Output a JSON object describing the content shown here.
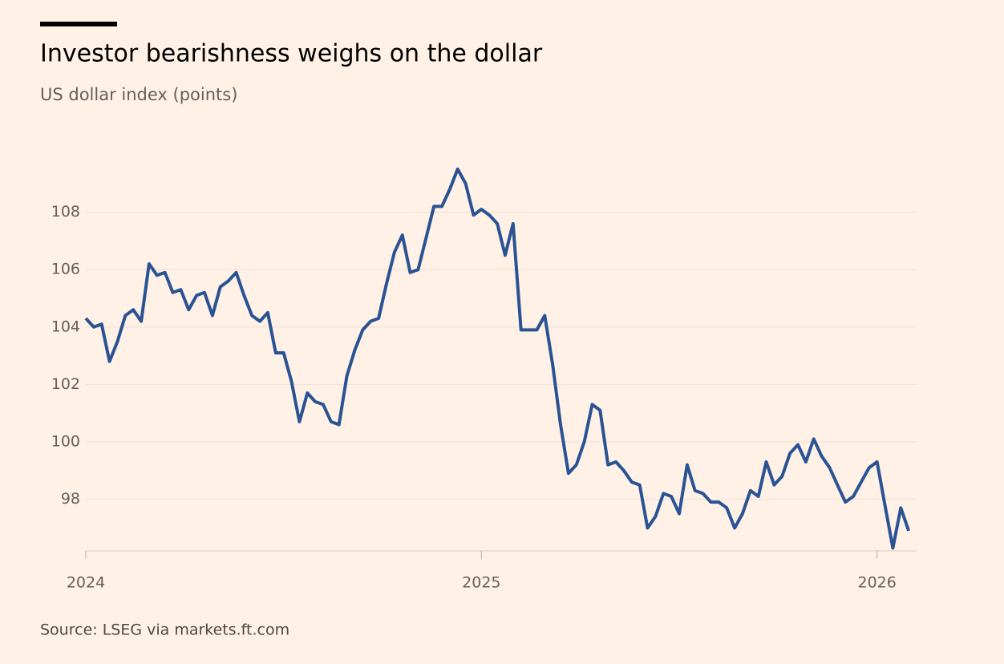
{
  "chart_data": {
    "type": "line",
    "title": "Investor bearishness weighs on the dollar",
    "subtitle": "US dollar index (points)",
    "source": "Source: LSEG via markets.ft.com",
    "x": [
      2024,
      2024.02,
      2024.04,
      2024.06,
      2024.08,
      2024.1,
      2024.12,
      2024.14,
      2024.16,
      2024.18,
      2024.2,
      2024.22,
      2024.24,
      2024.26,
      2024.28,
      2024.3,
      2024.32,
      2024.34,
      2024.36,
      2024.38,
      2024.4,
      2024.42,
      2024.44,
      2024.46,
      2024.48,
      2024.5,
      2024.52,
      2024.54,
      2024.56,
      2024.58,
      2024.6,
      2024.62,
      2024.64,
      2024.66,
      2024.68,
      2024.7,
      2024.72,
      2024.74,
      2024.76,
      2024.78,
      2024.8,
      2024.82,
      2024.84,
      2024.86,
      2024.88,
      2024.9,
      2024.92,
      2024.94,
      2024.96,
      2024.98,
      2025,
      2025.02,
      2025.04,
      2025.06,
      2025.08,
      2025.1,
      2025.12,
      2025.14,
      2025.16,
      2025.18,
      2025.2,
      2025.22,
      2025.24,
      2025.26,
      2025.28,
      2025.3,
      2025.32,
      2025.34,
      2025.36,
      2025.38,
      2025.4,
      2025.42,
      2025.44,
      2025.46,
      2025.48,
      2025.5,
      2025.52,
      2025.54,
      2025.56,
      2025.58,
      2025.6,
      2025.62,
      2025.64,
      2025.66,
      2025.68,
      2025.7,
      2025.72,
      2025.74,
      2025.76,
      2025.78,
      2025.8,
      2025.82,
      2025.84,
      2025.86,
      2025.88,
      2025.9,
      2025.92,
      2025.94,
      2025.96,
      2025.98,
      2026,
      2026.02,
      2026.04,
      2026.06,
      2026.08
    ],
    "values": [
      104.3,
      104.0,
      104.1,
      102.8,
      103.5,
      104.4,
      104.6,
      104.2,
      106.2,
      105.8,
      105.9,
      105.2,
      105.3,
      104.6,
      105.1,
      105.2,
      104.4,
      105.4,
      105.6,
      105.9,
      105.1,
      104.4,
      104.2,
      104.5,
      103.1,
      103.1,
      102.1,
      100.7,
      101.7,
      101.4,
      101.3,
      100.7,
      100.6,
      102.3,
      103.2,
      103.9,
      104.2,
      104.3,
      105.5,
      106.6,
      107.2,
      105.9,
      106.0,
      107.1,
      108.2,
      108.2,
      108.8,
      109.5,
      109.0,
      107.9,
      108.1,
      107.9,
      107.6,
      106.5,
      107.6,
      103.9,
      103.9,
      103.9,
      104.4,
      102.7,
      100.6,
      98.9,
      99.2,
      100.0,
      101.3,
      101.1,
      99.2,
      99.3,
      99.0,
      98.6,
      98.5,
      97.0,
      97.4,
      98.2,
      98.1,
      97.5,
      99.2,
      98.3,
      98.2,
      97.9,
      97.9,
      97.7,
      97.0,
      97.5,
      98.3,
      98.1,
      99.3,
      98.5,
      98.8,
      99.6,
      99.9,
      99.3,
      100.1,
      99.5,
      99.1,
      98.5,
      97.9,
      98.1,
      98.6,
      99.1,
      99.3,
      97.8,
      96.3,
      97.7,
      96.9
    ],
    "color": "#2a5394",
    "xlim": [
      2024,
      2026.1
    ],
    "xticks": [
      2024,
      2025,
      2026
    ],
    "ylim": [
      96.2,
      110
    ],
    "yticks": [
      98,
      100,
      102,
      104,
      106,
      108
    ],
    "grid": true
  }
}
